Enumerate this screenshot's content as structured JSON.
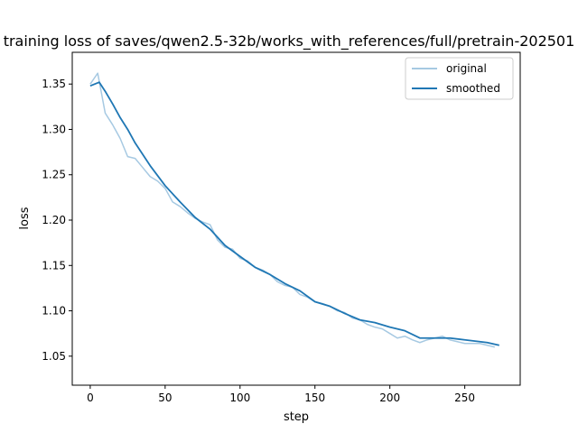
{
  "chart_data": {
    "type": "line",
    "title": "training loss of saves/qwen2.5-32b/works_with_references/full/pretrain-202501",
    "xlabel": "step",
    "ylabel": "loss",
    "xlim": [
      -12,
      287
    ],
    "ylim": [
      1.018,
      1.385
    ],
    "xticks": [
      0,
      50,
      100,
      150,
      200,
      250
    ],
    "yticks": [
      1.05,
      1.1,
      1.15,
      1.2,
      1.25,
      1.3,
      1.35
    ],
    "ytick_labels": [
      "1.05",
      "1.10",
      "1.15",
      "1.20",
      "1.25",
      "1.30",
      "1.35"
    ],
    "legend_position": "top-right",
    "series": [
      {
        "name": "original",
        "color": "#a6c9e2",
        "x_start": 0,
        "x_step": 5,
        "values": [
          1.35,
          1.362,
          1.318,
          1.305,
          1.29,
          1.27,
          1.268,
          1.258,
          1.248,
          1.243,
          1.235,
          1.22,
          1.215,
          1.208,
          1.202,
          1.198,
          1.195,
          1.178,
          1.17,
          1.168,
          1.158,
          1.155,
          1.148,
          1.145,
          1.14,
          1.132,
          1.128,
          1.126,
          1.118,
          1.115,
          1.11,
          1.108,
          1.105,
          1.1,
          1.098,
          1.092,
          1.09,
          1.085,
          1.082,
          1.08,
          1.075,
          1.07,
          1.072,
          1.068,
          1.065,
          1.068,
          1.07,
          1.072,
          1.068,
          1.066,
          1.064,
          1.064,
          1.064,
          1.062,
          1.06
        ]
      },
      {
        "name": "smoothed",
        "color": "#1f77b4",
        "x": [
          0,
          6,
          10,
          15,
          20,
          25,
          30,
          40,
          50,
          60,
          70,
          80,
          90,
          100,
          110,
          120,
          130,
          140,
          150,
          160,
          170,
          180,
          190,
          200,
          210,
          220,
          230,
          240,
          250,
          260,
          265,
          273
        ],
        "values": [
          1.348,
          1.352,
          1.342,
          1.328,
          1.313,
          1.3,
          1.285,
          1.26,
          1.238,
          1.22,
          1.203,
          1.19,
          1.172,
          1.16,
          1.148,
          1.14,
          1.13,
          1.122,
          1.11,
          1.105,
          1.097,
          1.09,
          1.087,
          1.082,
          1.078,
          1.07,
          1.07,
          1.07,
          1.068,
          1.066,
          1.065,
          1.062
        ]
      }
    ]
  }
}
